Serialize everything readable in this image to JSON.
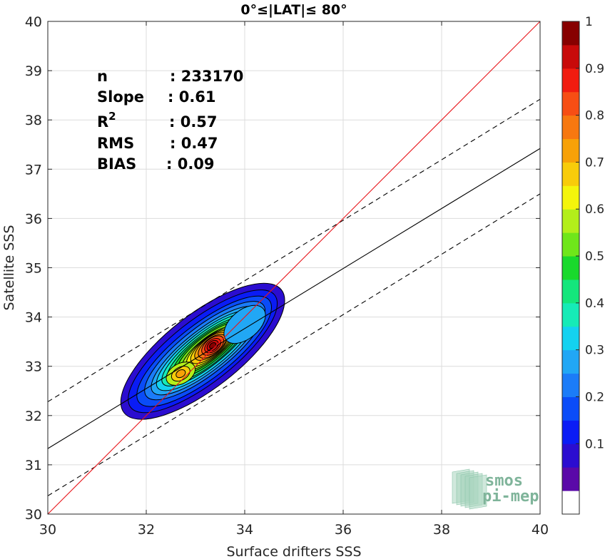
{
  "chart_data": {
    "type": "contour",
    "title": "0°≤|LAT|≤ 80°",
    "xlabel": "Surface drifters SSS",
    "ylabel": "Satellite SSS",
    "xlim": [
      30,
      40
    ],
    "ylim": [
      30,
      40
    ],
    "xticks": [
      30,
      32,
      34,
      36,
      38,
      40
    ],
    "yticks": [
      30,
      31,
      32,
      33,
      34,
      35,
      36,
      37,
      38,
      39,
      40
    ],
    "grid": true,
    "stats": [
      {
        "label": "n",
        "value": ": 233170"
      },
      {
        "label": "Slope",
        "value": ": 0.61"
      },
      {
        "label": "R",
        "sup": "2",
        "value": ": 0.57"
      },
      {
        "label": "RMS",
        "value": ": 0.47"
      },
      {
        "label": "BIAS",
        "value": ": 0.09"
      }
    ],
    "lines": {
      "one_to_one": {
        "x": [
          30,
          40
        ],
        "y": [
          30,
          40
        ],
        "color": "#e8161b"
      },
      "regression": {
        "x": [
          30,
          40
        ],
        "y": [
          31.33,
          37.42
        ],
        "color": "#000000"
      },
      "upper_bound": {
        "x": [
          30,
          40
        ],
        "y": [
          32.28,
          38.42
        ],
        "color": "#000000",
        "style": "dashed"
      },
      "lower_bound": {
        "x": [
          30,
          40
        ],
        "y": [
          30.37,
          36.5
        ],
        "color": "#000000",
        "style": "dashed"
      }
    },
    "density_peak": {
      "x": 33.35,
      "y": 33.42
    },
    "secondary_peak": {
      "x": 32.7,
      "y": 32.85
    },
    "colorbar": {
      "ticks": [
        "0.1",
        "0.2",
        "0.3",
        "0.4",
        "0.5",
        "0.6",
        "0.7",
        "0.8",
        "0.9",
        "1"
      ],
      "levels": [
        0.05,
        0.1,
        0.15,
        0.2,
        0.25,
        0.3,
        0.35,
        0.4,
        0.45,
        0.5,
        0.55,
        0.6,
        0.65,
        0.7,
        0.75,
        0.8,
        0.85,
        0.9,
        0.95,
        1.0
      ],
      "colors": [
        "#ffffff",
        "#5a09a8",
        "#2b0dd0",
        "#0a1cf5",
        "#0a4cf8",
        "#1b7cf8",
        "#21a7f5",
        "#14d2f0",
        "#16ebb7",
        "#14e67c",
        "#19d92c",
        "#6fe61a",
        "#b3ee1a",
        "#f4f50c",
        "#f8cc0a",
        "#f7a108",
        "#f77810",
        "#f74e14",
        "#f11c10",
        "#c80a0a",
        "#870000"
      ]
    },
    "logo": {
      "line1": "smos",
      "line2": "pi-mep"
    }
  }
}
